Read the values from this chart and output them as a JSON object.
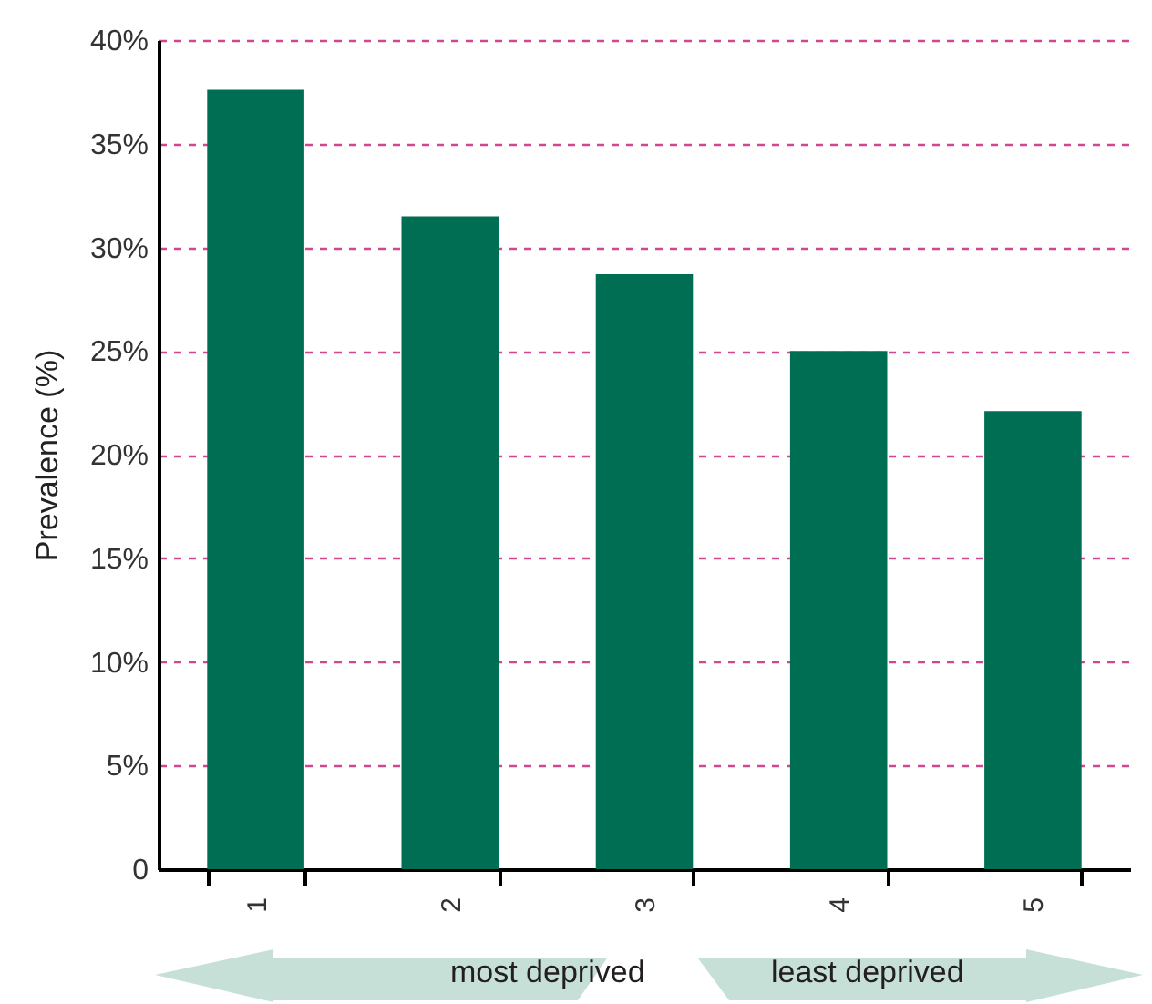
{
  "chart_data": {
    "type": "bar",
    "ylabel": "Prevalence (%)",
    "categories": [
      "1",
      "2",
      "3",
      "4",
      "5"
    ],
    "values": [
      37.6,
      31.5,
      28.7,
      25.0,
      22.1
    ],
    "color": "#006e52",
    "ylim": [
      0,
      40
    ],
    "yticks": [
      0,
      {
        "value": 5,
        "label": "5%"
      },
      {
        "value": 10,
        "label": "10%"
      },
      {
        "value": 15,
        "label": "15%"
      },
      {
        "value": 20,
        "label": "20%"
      },
      {
        "value": 25,
        "label": "25%"
      },
      {
        "value": 30,
        "label": "30%"
      },
      {
        "value": 35,
        "label": "35%"
      },
      {
        "value": 40,
        "label": "40%"
      }
    ],
    "grid": "y",
    "annotations": [
      "most deprived",
      "least deprived"
    ]
  }
}
